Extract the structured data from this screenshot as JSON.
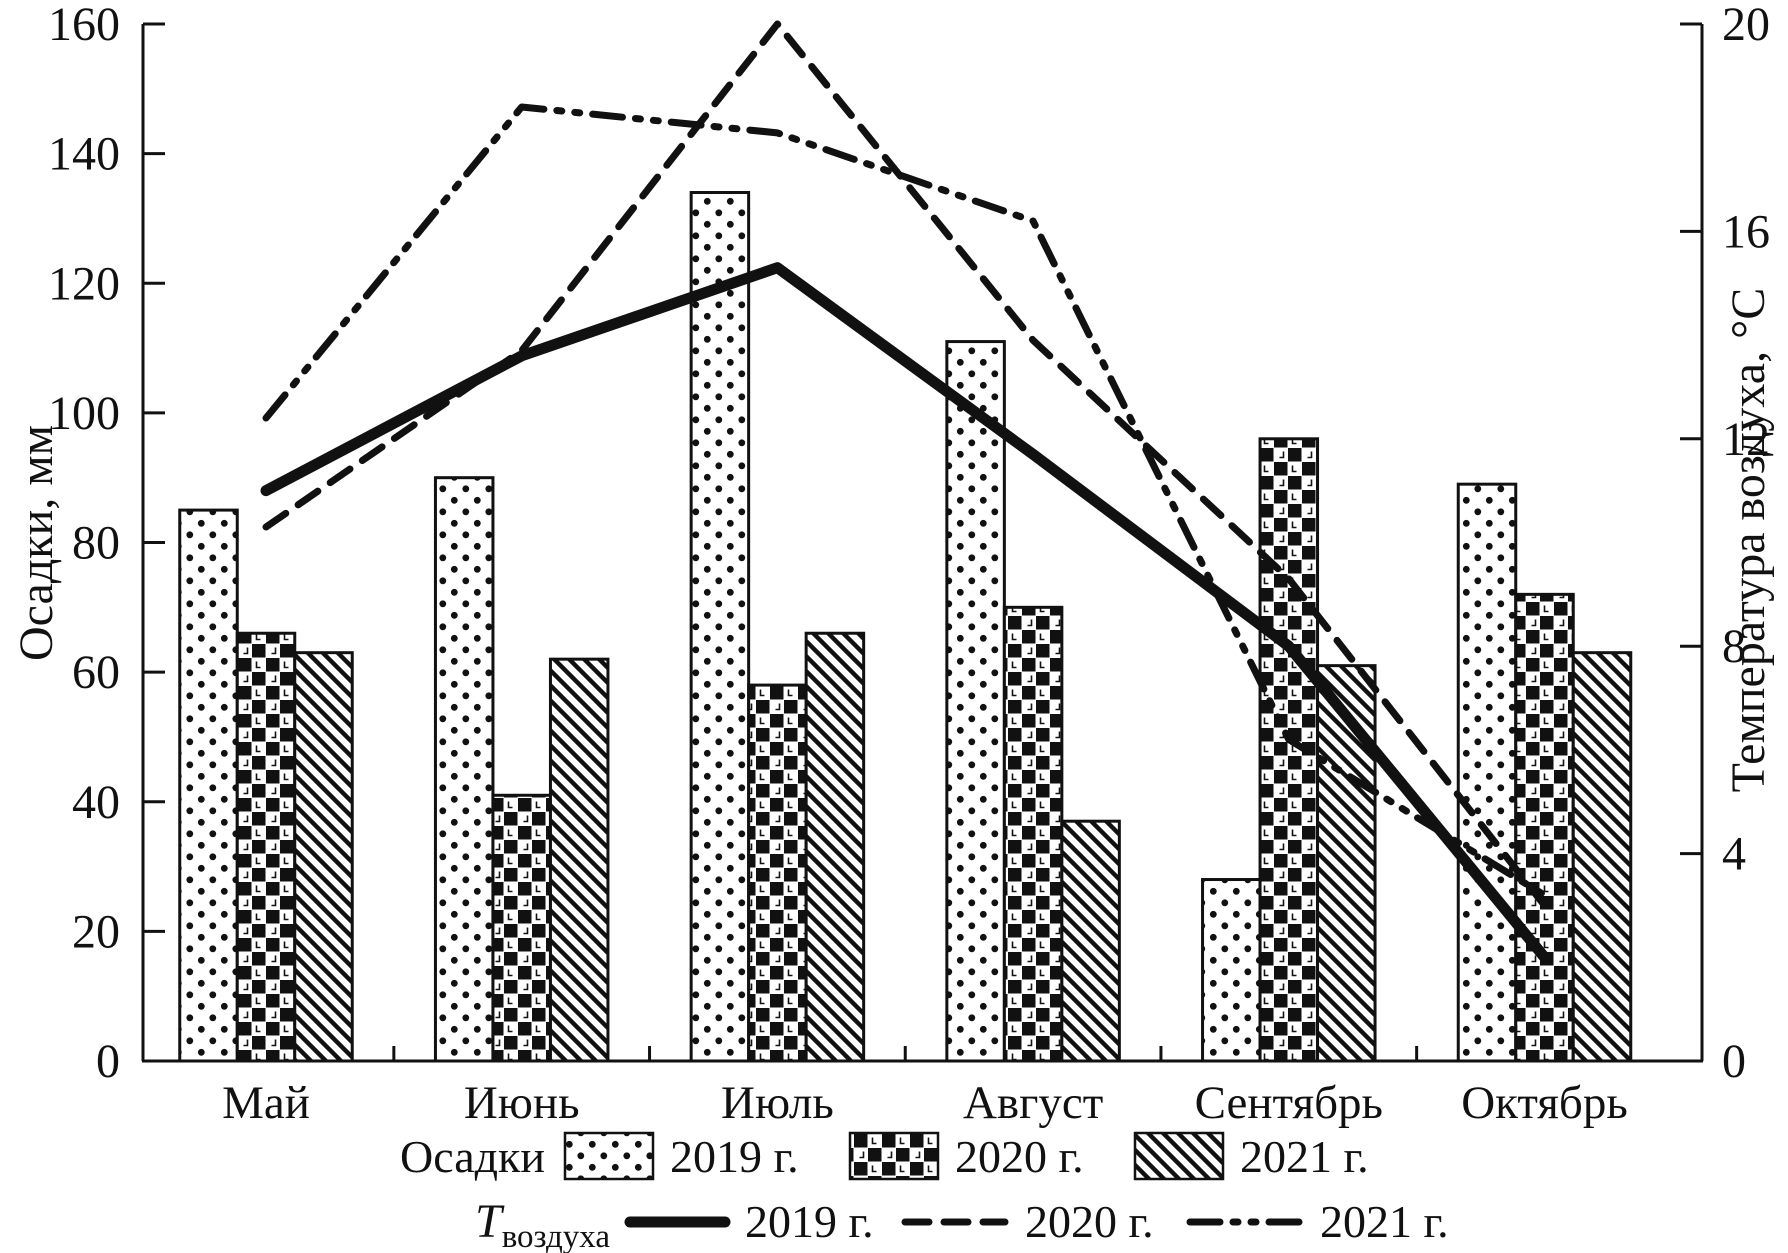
{
  "colors": {
    "ink": "#111111",
    "background": "#ffffff"
  },
  "chart_data": {
    "type": "bar",
    "subtype": "grouped-bar-with-lines",
    "categories": [
      "Май",
      "Июнь",
      "Июль",
      "Август",
      "Сентябрь",
      "Октябрь"
    ],
    "left_axis": {
      "label": "Осадки, мм",
      "min": 0,
      "max": 160,
      "step": 20,
      "tick_labels": [
        "0",
        "20",
        "40",
        "60",
        "80",
        "100",
        "120",
        "140",
        "160"
      ]
    },
    "right_axis": {
      "label": "Температура воздуха, °С",
      "min": 0,
      "max": 20,
      "step": 4,
      "tick_labels": [
        "0",
        "4",
        "8",
        "12",
        "16",
        "20"
      ]
    },
    "grid": "off",
    "bar_series": [
      {
        "name": "2019 г.",
        "pattern": "dots",
        "values": [
          85,
          90,
          134,
          111,
          28,
          89
        ]
      },
      {
        "name": "2020 г.",
        "pattern": "checker",
        "values": [
          66,
          41,
          58,
          70,
          96,
          72
        ]
      },
      {
        "name": "2021 г.",
        "pattern": "hatch",
        "values": [
          63,
          62,
          66,
          37,
          61,
          63
        ]
      }
    ],
    "line_series": [
      {
        "name": "2019 г.",
        "style": "solid",
        "values": [
          11.0,
          13.6,
          15.3,
          11.7,
          8.0,
          2.0
        ]
      },
      {
        "name": "2020 г.",
        "style": "dashed",
        "values": [
          10.3,
          13.7,
          20.0,
          13.9,
          9.3,
          3.0
        ]
      },
      {
        "name": "2021 г.",
        "style": "dashdotdot",
        "values": [
          12.4,
          18.4,
          17.9,
          16.2,
          6.2,
          3.2
        ]
      }
    ],
    "legend": {
      "position": "bottom",
      "bars_group_label": "Осадки",
      "lines_group_label_main": "T",
      "lines_group_label_sub": "воздуха",
      "bar_entries": [
        "2019 г.",
        "2020 г.",
        "2021 г."
      ],
      "line_entries": [
        "2019 г.",
        "2020 г.",
        "2021 г."
      ]
    }
  }
}
